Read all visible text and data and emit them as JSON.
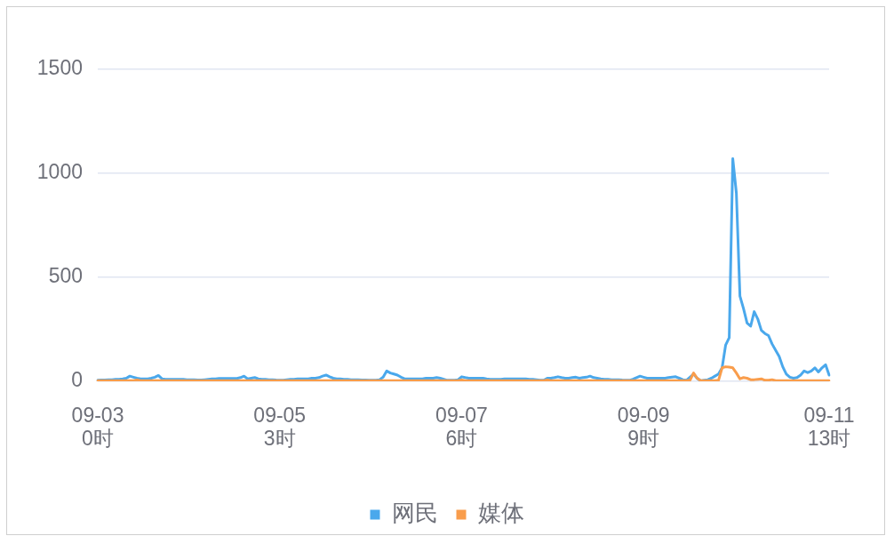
{
  "chart_data": {
    "type": "line",
    "categories": [
      "09-03 0时",
      null,
      null,
      null,
      null,
      null,
      null,
      null,
      null,
      null,
      null,
      null,
      null,
      null,
      null,
      null,
      null,
      null,
      null,
      null,
      null,
      null,
      null,
      null,
      null,
      null,
      null,
      null,
      null,
      null,
      null,
      null,
      null,
      null,
      null,
      null,
      null,
      null,
      null,
      null,
      null,
      null,
      null,
      null,
      null,
      null,
      null,
      null,
      null,
      null,
      null,
      "09-05 3时",
      null,
      null,
      null,
      null,
      null,
      null,
      null,
      null,
      null,
      null,
      null,
      null,
      null,
      null,
      null,
      null,
      null,
      null,
      null,
      null,
      null,
      null,
      null,
      null,
      null,
      null,
      null,
      null,
      null,
      null,
      null,
      null,
      null,
      null,
      null,
      null,
      null,
      null,
      null,
      null,
      null,
      null,
      null,
      null,
      null,
      null,
      null,
      null,
      null,
      null,
      "09-07 6时",
      null,
      null,
      null,
      null,
      null,
      null,
      null,
      null,
      null,
      null,
      null,
      null,
      null,
      null,
      null,
      null,
      null,
      null,
      null,
      null,
      null,
      null,
      null,
      null,
      null,
      null,
      null,
      null,
      null,
      null,
      null,
      null,
      null,
      null,
      null,
      null,
      null,
      null,
      null,
      null,
      null,
      null,
      null,
      null,
      null,
      null,
      null,
      null,
      null,
      null,
      "09-09 9时",
      null,
      null,
      null,
      null,
      null,
      null,
      null,
      null,
      null,
      null,
      null,
      null,
      null,
      null,
      null,
      null,
      null,
      null,
      null,
      null,
      null,
      null,
      null,
      null,
      null,
      null,
      null,
      null,
      null,
      null,
      null,
      null,
      null,
      null,
      null,
      null,
      null,
      null,
      null,
      null,
      null,
      null,
      null,
      null,
      null,
      null,
      null,
      null,
      null,
      null,
      null,
      "09-11 13时"
    ],
    "ylim": [
      0,
      1500
    ],
    "yticks": [
      0,
      500,
      1000,
      1500
    ],
    "grid": "y",
    "legend": "bottom",
    "series": [
      {
        "name": "网民",
        "color": "#4aa8ec",
        "values": [
          5,
          6,
          6,
          7,
          8,
          10,
          10,
          12,
          15,
          25,
          20,
          15,
          12,
          12,
          12,
          15,
          20,
          28,
          12,
          10,
          10,
          10,
          10,
          10,
          10,
          8,
          8,
          8,
          6,
          6,
          8,
          10,
          12,
          12,
          14,
          14,
          14,
          14,
          14,
          14,
          18,
          25,
          12,
          15,
          18,
          12,
          10,
          10,
          8,
          8,
          6,
          5,
          5,
          8,
          10,
          10,
          12,
          12,
          12,
          12,
          15,
          15,
          18,
          25,
          30,
          22,
          15,
          12,
          12,
          10,
          10,
          8,
          8,
          8,
          6,
          6,
          5,
          5,
          5,
          8,
          20,
          50,
          40,
          35,
          30,
          20,
          12,
          12,
          12,
          12,
          12,
          12,
          15,
          15,
          15,
          18,
          15,
          10,
          5,
          5,
          5,
          8,
          22,
          18,
          15,
          15,
          15,
          15,
          15,
          12,
          10,
          10,
          10,
          10,
          12,
          12,
          12,
          12,
          12,
          12,
          12,
          10,
          10,
          8,
          5,
          5,
          15,
          15,
          18,
          22,
          18,
          15,
          15,
          18,
          20,
          15,
          18,
          20,
          25,
          18,
          15,
          12,
          10,
          10,
          8,
          8,
          8,
          6,
          5,
          5,
          10,
          18,
          25,
          20,
          15,
          15,
          15,
          15,
          15,
          15,
          18,
          20,
          22,
          15,
          8,
          5,
          20,
          35,
          15,
          2,
          5,
          8,
          15,
          25,
          35,
          65,
          175,
          210,
          1070,
          905,
          410,
          350,
          280,
          265,
          335,
          300,
          245,
          230,
          220,
          180,
          150,
          120,
          70,
          35,
          20,
          15,
          18,
          30,
          50,
          42,
          50,
          65,
          45,
          65,
          80,
          30
        ]
      },
      {
        "name": "媒体",
        "color": "#f99d4c",
        "values": [
          3,
          3,
          3,
          3,
          3,
          3,
          3,
          3,
          3,
          3,
          3,
          7,
          3,
          3,
          3,
          3,
          3,
          3,
          3,
          3,
          3,
          3,
          3,
          3,
          3,
          3,
          3,
          3,
          3,
          3,
          3,
          3,
          3,
          3,
          3,
          3,
          3,
          3,
          3,
          3,
          3,
          3,
          3,
          3,
          3,
          3,
          3,
          3,
          3,
          3,
          3,
          3,
          3,
          3,
          3,
          3,
          3,
          3,
          3,
          3,
          3,
          3,
          3,
          3,
          3,
          3,
          3,
          3,
          3,
          3,
          3,
          3,
          3,
          3,
          3,
          3,
          3,
          3,
          3,
          3,
          3,
          3,
          3,
          3,
          3,
          3,
          3,
          3,
          3,
          3,
          3,
          3,
          3,
          3,
          3,
          3,
          3,
          3,
          3,
          3,
          3,
          3,
          6,
          3,
          3,
          3,
          3,
          3,
          3,
          3,
          3,
          3,
          3,
          3,
          3,
          3,
          3,
          3,
          3,
          3,
          3,
          3,
          3,
          3,
          3,
          3,
          6,
          3,
          3,
          3,
          3,
          3,
          3,
          3,
          3,
          3,
          3,
          3,
          3,
          3,
          3,
          3,
          3,
          3,
          3,
          3,
          3,
          3,
          3,
          3,
          3,
          3,
          3,
          3,
          3,
          3,
          3,
          3,
          3,
          3,
          3,
          3,
          3,
          3,
          3,
          3,
          5,
          40,
          15,
          3,
          3,
          3,
          3,
          3,
          5,
          65,
          70,
          68,
          65,
          40,
          12,
          18,
          15,
          8,
          8,
          10,
          12,
          5,
          5,
          8,
          3,
          3,
          3,
          3,
          3,
          3,
          3,
          3,
          3,
          3,
          3,
          3,
          3,
          3,
          3,
          3
        ]
      }
    ]
  }
}
